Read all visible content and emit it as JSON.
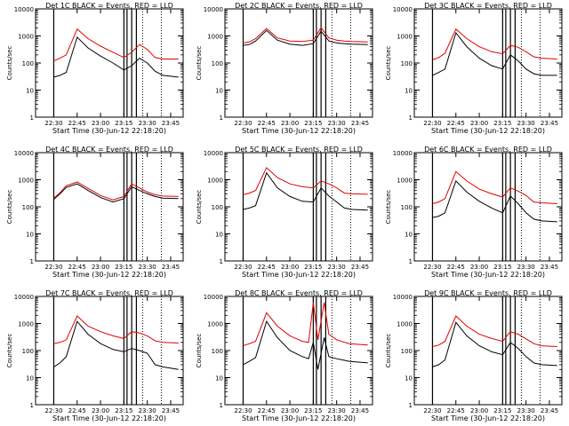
{
  "chart_data": {
    "type": "line",
    "layout": {
      "rows": 3,
      "cols": 3
    },
    "yscale": "log",
    "ylim": [
      1,
      10000
    ],
    "ytick_labels": [
      "1",
      "10",
      "100",
      "1000",
      "10000"
    ],
    "xtick_labels": [
      "22:30",
      "22:45",
      "23:00",
      "23:15",
      "23:30",
      "23:45"
    ],
    "xlabel": "Start Time (30-Jun-12 22:18:20)",
    "ylabel": "Counts/sec",
    "series_colors": {
      "events": "#000000",
      "lld": "#e00000"
    },
    "panels": [
      {
        "title": "Det 1C BLACK = Events, RED = LLD",
        "time": [
          "22:30",
          "22:34",
          "22:38",
          "22:45",
          "22:52",
          "23:00",
          "23:08",
          "23:15",
          "23:20",
          "23:25",
          "23:30",
          "23:35",
          "23:40",
          "23:50"
        ],
        "series": [
          {
            "values": [
              30,
              35,
              45,
              900,
              360,
              180,
              100,
              55,
              80,
              150,
              100,
              50,
              35,
              30
            ]
          },
          {
            "values": [
              120,
              150,
              200,
              1800,
              800,
              420,
              250,
              160,
              250,
              480,
              320,
              160,
              140,
              140
            ]
          }
        ]
      },
      {
        "title": "Det 2C BLACK = Events, RED = LLD",
        "time": [
          "22:30",
          "22:34",
          "22:38",
          "22:45",
          "22:52",
          "23:00",
          "23:08",
          "23:15",
          "23:20",
          "23:25",
          "23:30",
          "23:35",
          "23:40",
          "23:50"
        ],
        "series": [
          {
            "values": [
              450,
              480,
              650,
              1600,
              700,
              500,
              450,
              520,
              1500,
              650,
              550,
              520,
              500,
              480
            ]
          },
          {
            "values": [
              550,
              600,
              800,
              1900,
              850,
              650,
              620,
              700,
              2000,
              850,
              700,
              650,
              620,
              600
            ]
          }
        ]
      },
      {
        "title": "Det 3C BLACK = Events, RED = LLD",
        "time": [
          "22:30",
          "22:34",
          "22:38",
          "22:45",
          "22:52",
          "23:00",
          "23:08",
          "23:15",
          "23:20",
          "23:25",
          "23:30",
          "23:35",
          "23:40",
          "23:50"
        ],
        "series": [
          {
            "values": [
              35,
              45,
              60,
              1300,
              400,
              150,
              80,
              60,
              200,
              120,
              60,
              40,
              35,
              35
            ]
          },
          {
            "values": [
              130,
              160,
              230,
              1800,
              800,
              400,
              260,
              220,
              450,
              380,
              260,
              170,
              150,
              140
            ]
          }
        ]
      },
      {
        "title": "Det 4C BLACK = Events, RED = LLD",
        "time": [
          "22:30",
          "22:34",
          "22:38",
          "22:45",
          "22:52",
          "23:00",
          "23:08",
          "23:15",
          "23:20",
          "23:25",
          "23:30",
          "23:35",
          "23:40",
          "23:50"
        ],
        "series": [
          {
            "values": [
              190,
              300,
              520,
              700,
              400,
              220,
              150,
              200,
              550,
              400,
              300,
              240,
              210,
              200
            ]
          },
          {
            "values": [
              210,
              330,
              600,
              820,
              480,
              260,
              180,
              240,
              700,
              500,
              350,
              280,
              250,
              240
            ]
          }
        ]
      },
      {
        "title": "Det 5C BLACK = Events, RED = LLD",
        "time": [
          "22:30",
          "22:34",
          "22:38",
          "22:45",
          "22:52",
          "23:00",
          "23:08",
          "23:15",
          "23:20",
          "23:25",
          "23:30",
          "23:35",
          "23:40",
          "23:50"
        ],
        "series": [
          {
            "values": [
              80,
              90,
              110,
              1800,
              500,
              240,
              160,
              150,
              500,
              250,
              150,
              90,
              80,
              75
            ]
          },
          {
            "values": [
              280,
              320,
              400,
              2800,
              1200,
              700,
              550,
              500,
              900,
              700,
              500,
              320,
              300,
              290
            ]
          }
        ]
      },
      {
        "title": "Det 6C BLACK = Events, RED = LLD",
        "time": [
          "22:30",
          "22:34",
          "22:38",
          "22:45",
          "22:52",
          "23:00",
          "23:08",
          "23:15",
          "23:20",
          "23:25",
          "23:30",
          "23:35",
          "23:40",
          "23:50"
        ],
        "series": [
          {
            "values": [
              40,
              45,
              60,
              900,
              350,
              160,
              90,
              60,
              250,
              130,
              60,
              35,
              30,
              28
            ]
          },
          {
            "values": [
              130,
              150,
              200,
              2000,
              900,
              450,
              300,
              230,
              500,
              380,
              260,
              150,
              140,
              130
            ]
          }
        ]
      },
      {
        "title": "Det 7C BLACK = Events, RED = LLD",
        "time": [
          "22:30",
          "22:34",
          "22:38",
          "22:45",
          "22:52",
          "23:00",
          "23:08",
          "23:15",
          "23:20",
          "23:25",
          "23:30",
          "23:35",
          "23:40",
          "23:50"
        ],
        "series": [
          {
            "values": [
              25,
              35,
              60,
              1200,
              400,
              180,
              110,
              90,
              120,
              100,
              80,
              30,
              25,
              20
            ]
          },
          {
            "values": [
              180,
              200,
              250,
              1900,
              800,
              500,
              350,
              280,
              500,
              450,
              350,
              230,
              200,
              190
            ]
          }
        ]
      },
      {
        "title": "Det 8C BLACK = Events, RED = LLD",
        "time": [
          "22:30",
          "22:34",
          "22:38",
          "22:45",
          "22:52",
          "23:00",
          "23:08",
          "23:12",
          "23:15",
          "23:18",
          "23:22",
          "23:25",
          "23:30",
          "23:38",
          "23:50"
        ],
        "series": [
          {
            "values": [
              30,
              40,
              55,
              1200,
              300,
              100,
              60,
              50,
              200,
              20,
              300,
              60,
              50,
              40,
              35
            ]
          },
          {
            "values": [
              150,
              180,
              220,
              2500,
              800,
              350,
              220,
              200,
              6000,
              250,
              6000,
              400,
              250,
              180,
              160
            ]
          }
        ]
      },
      {
        "title": "Det 9C BLACK = Events, RED = LLD",
        "time": [
          "22:30",
          "22:34",
          "22:38",
          "22:45",
          "22:52",
          "23:00",
          "23:08",
          "23:15",
          "23:20",
          "23:25",
          "23:30",
          "23:35",
          "23:40",
          "23:50"
        ],
        "series": [
          {
            "values": [
              25,
              30,
              45,
              1100,
              350,
              150,
              90,
              70,
              200,
              120,
              60,
              35,
              30,
              28
            ]
          },
          {
            "values": [
              140,
              160,
              220,
              1900,
              800,
              400,
              280,
              220,
              500,
              400,
              270,
              180,
              150,
              140
            ]
          }
        ]
      }
    ]
  }
}
